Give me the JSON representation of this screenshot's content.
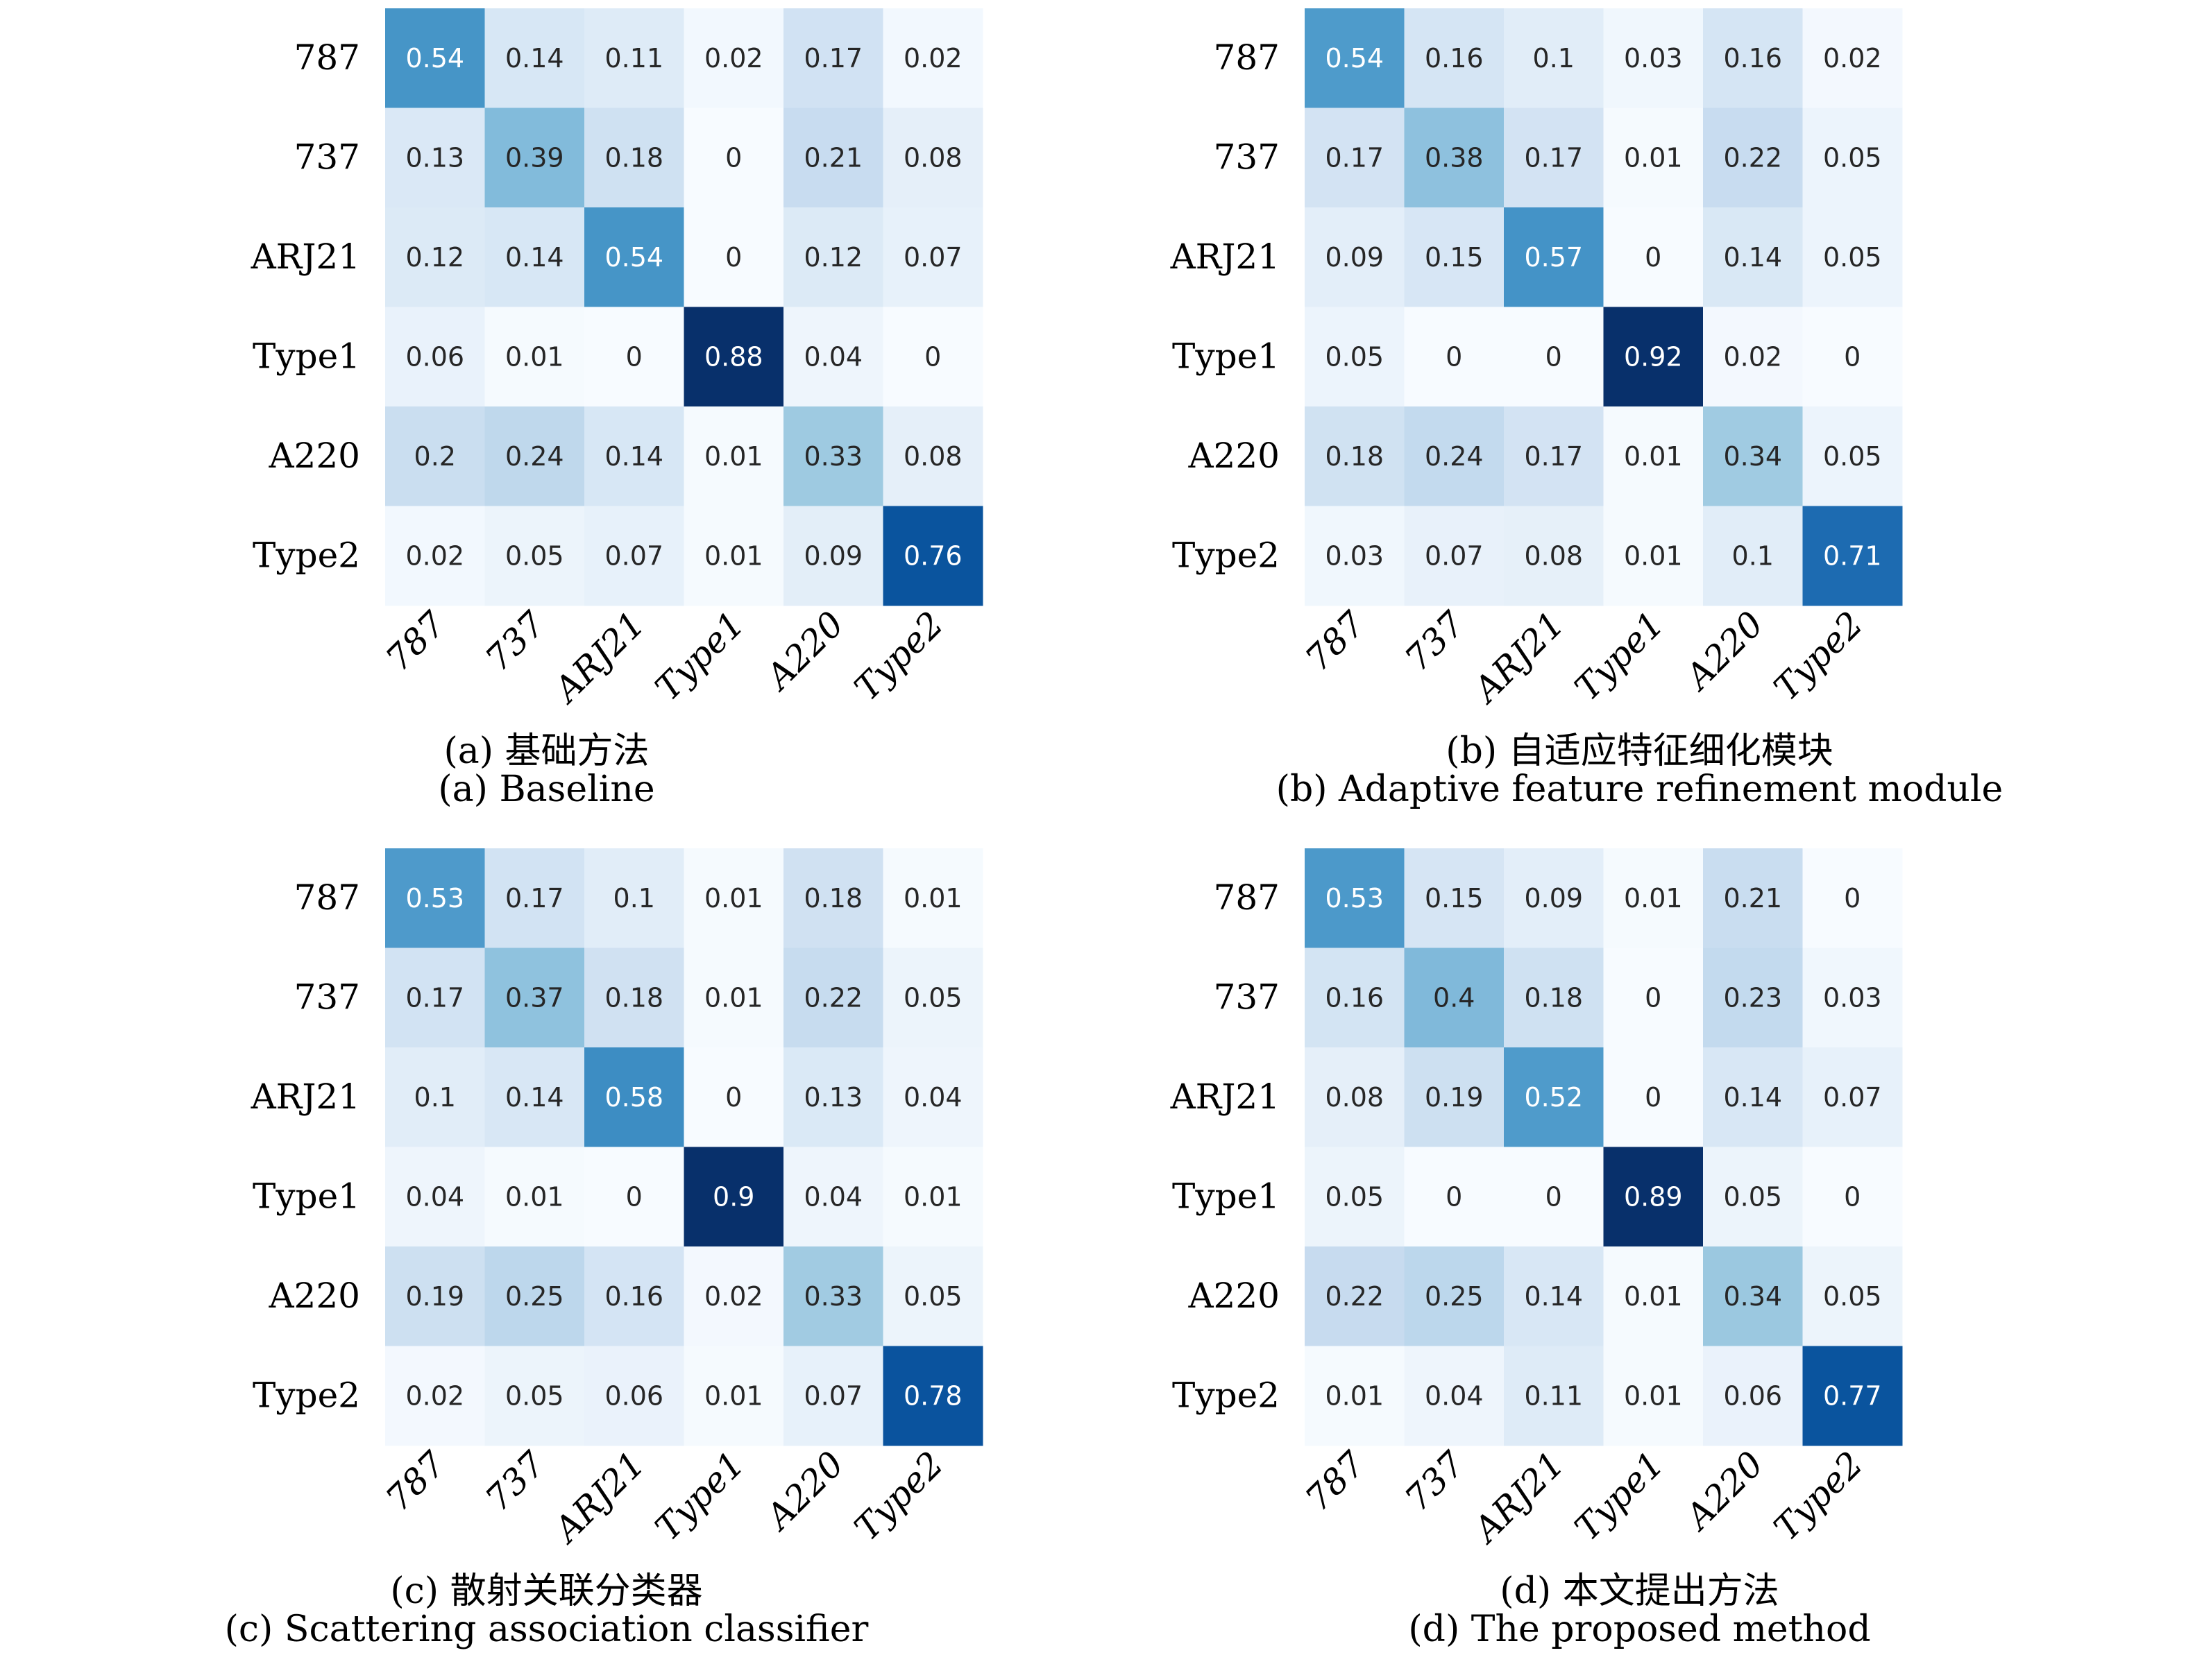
{
  "chart_data": [
    {
      "type": "heatmap",
      "panel": "a",
      "title_zh": "(a) 基础方法",
      "title_en": "(a) Baseline",
      "xlabels": [
        "787",
        "737",
        "ARJ21",
        "Type1",
        "A220",
        "Type2"
      ],
      "ylabels": [
        "787",
        "737",
        "ARJ21",
        "Type1",
        "A220",
        "Type2"
      ],
      "colormap": "Blues",
      "vmin": 0,
      "vmax": 0.88,
      "values": [
        [
          0.54,
          0.14,
          0.11,
          0.02,
          0.17,
          0.02
        ],
        [
          0.13,
          0.39,
          0.18,
          0.0,
          0.21,
          0.08
        ],
        [
          0.12,
          0.14,
          0.54,
          0.0,
          0.12,
          0.07
        ],
        [
          0.06,
          0.01,
          0.0,
          0.88,
          0.04,
          0.0
        ],
        [
          0.2,
          0.24,
          0.14,
          0.01,
          0.33,
          0.08
        ],
        [
          0.02,
          0.05,
          0.07,
          0.01,
          0.09,
          0.76
        ]
      ]
    },
    {
      "type": "heatmap",
      "panel": "b",
      "title_zh": "(b) 自适应特征细化模块",
      "title_en": "(b) Adaptive feature refinement module",
      "xlabels": [
        "787",
        "737",
        "ARJ21",
        "Type1",
        "A220",
        "Type2"
      ],
      "ylabels": [
        "787",
        "737",
        "ARJ21",
        "Type1",
        "A220",
        "Type2"
      ],
      "colormap": "Blues",
      "vmin": 0,
      "vmax": 0.92,
      "values": [
        [
          0.54,
          0.16,
          0.1,
          0.03,
          0.16,
          0.02
        ],
        [
          0.17,
          0.38,
          0.17,
          0.01,
          0.22,
          0.05
        ],
        [
          0.09,
          0.15,
          0.57,
          0.0,
          0.14,
          0.05
        ],
        [
          0.05,
          0.0,
          0.0,
          0.92,
          0.02,
          0.0
        ],
        [
          0.18,
          0.24,
          0.17,
          0.01,
          0.34,
          0.05
        ],
        [
          0.03,
          0.07,
          0.08,
          0.01,
          0.1,
          0.71
        ]
      ]
    },
    {
      "type": "heatmap",
      "panel": "c",
      "title_zh": "(c) 散射关联分类器",
      "title_en": "(c) Scattering association classifier",
      "xlabels": [
        "787",
        "737",
        "ARJ21",
        "Type1",
        "A220",
        "Type2"
      ],
      "ylabels": [
        "787",
        "737",
        "ARJ21",
        "Type1",
        "A220",
        "Type2"
      ],
      "colormap": "Blues",
      "vmin": 0,
      "vmax": 0.9,
      "values": [
        [
          0.53,
          0.17,
          0.1,
          0.01,
          0.18,
          0.01
        ],
        [
          0.17,
          0.37,
          0.18,
          0.01,
          0.22,
          0.05
        ],
        [
          0.1,
          0.14,
          0.58,
          0.0,
          0.13,
          0.04
        ],
        [
          0.04,
          0.01,
          0.0,
          0.9,
          0.04,
          0.01
        ],
        [
          0.19,
          0.25,
          0.16,
          0.02,
          0.33,
          0.05
        ],
        [
          0.02,
          0.05,
          0.06,
          0.01,
          0.07,
          0.78
        ]
      ]
    },
    {
      "type": "heatmap",
      "panel": "d",
      "title_zh": "(d) 本文提出方法",
      "title_en": "(d) The proposed method",
      "xlabels": [
        "787",
        "737",
        "ARJ21",
        "Type1",
        "A220",
        "Type2"
      ],
      "ylabels": [
        "787",
        "737",
        "ARJ21",
        "Type1",
        "A220",
        "Type2"
      ],
      "colormap": "Blues",
      "vmin": 0,
      "vmax": 0.89,
      "values": [
        [
          0.53,
          0.15,
          0.09,
          0.01,
          0.21,
          0.0
        ],
        [
          0.16,
          0.4,
          0.18,
          0.0,
          0.23,
          0.03
        ],
        [
          0.08,
          0.19,
          0.52,
          0.0,
          0.14,
          0.07
        ],
        [
          0.05,
          0.0,
          0.0,
          0.89,
          0.05,
          0.0
        ],
        [
          0.22,
          0.25,
          0.14,
          0.01,
          0.34,
          0.05
        ],
        [
          0.01,
          0.04,
          0.11,
          0.01,
          0.06,
          0.77
        ]
      ]
    }
  ]
}
